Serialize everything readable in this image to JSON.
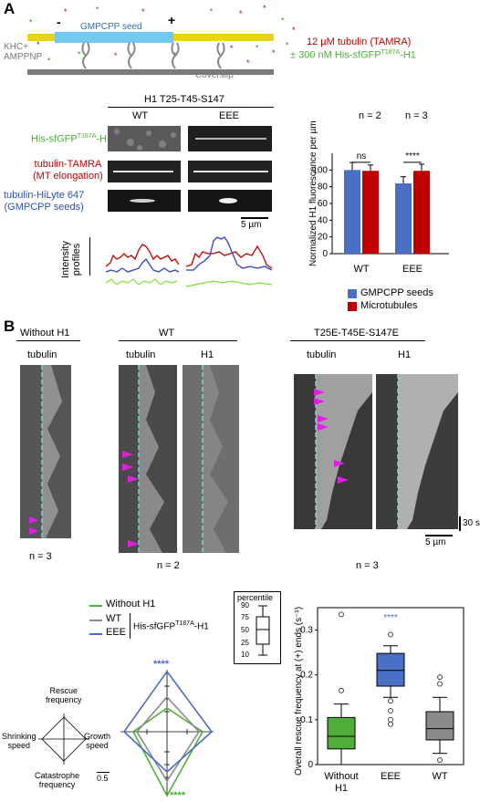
{
  "panelA": {
    "label": "A",
    "schematic": {
      "seed_label": "GMPCPP seed",
      "minus": "-",
      "plus": "+",
      "khc_label": [
        "KHC+",
        "AMPPNP"
      ],
      "coverslip_label": "Coverslip",
      "tubulin_text": "12 µM tubulin (TAMRA)",
      "h1_text_pre": "± 300 nM His-sfGFP",
      "h1_text_sup": "T187A",
      "h1_text_post": "-H1"
    },
    "micrographs": {
      "construct_title": "H1 T25-T45-S147",
      "col_wt": "WT",
      "col_eee": "EEE",
      "row1_pre": "His-sfGFP",
      "row1_sup": "T187A",
      "row1_post": "-H1",
      "row2_line1": "tubulin-TAMRA",
      "row2_line2": "(MT elongation)",
      "row3_line1": "tubulin-HiLyte 647",
      "row3_line2": "(GMPCPP seeds)",
      "scale_bar": "5 µm",
      "profiles_label": [
        "Intensity",
        "profiles"
      ]
    },
    "bar_chart_labels": {
      "n_wt": "n = 2",
      "n_eee": "n = 3",
      "sig_wt": "ns",
      "sig_eee": "****",
      "legend_seeds": "GMPCPP seeds",
      "legend_mt": "Microtubules"
    }
  },
  "panelB": {
    "label": "B",
    "groups": {
      "without_h1": "Without H1",
      "wt": "WT",
      "eee": "T25E-T45E-S147E"
    },
    "col_tubulin": "tubulin",
    "col_h1": "H1",
    "n_without": "n = 3",
    "n_wt": "n = 2",
    "n_eee": "n = 3",
    "time_scale": "30 s",
    "space_scale": "5 µm",
    "radar": {
      "legend_without": "Without H1",
      "legend_wt": "WT",
      "legend_eee": "EEE",
      "legend_construct_pre": "His-sfGFP",
      "legend_construct_sup": "T187A",
      "legend_construct_post": "-H1",
      "axis_rescue": [
        "Rescue",
        "frequency"
      ],
      "axis_shrinking": [
        "Shrinking",
        "speed"
      ],
      "axis_growth": [
        "Growth",
        "speed"
      ],
      "axis_catastrophe": [
        "Catastrophe",
        "frequency"
      ],
      "scale": "0.5",
      "sig_top": "****",
      "sig_bottom": "****"
    },
    "percentile_key": {
      "title": "percentile",
      "values": [
        "90",
        "75",
        "50",
        "25",
        "10"
      ]
    }
  },
  "colors": {
    "seed_blue": "#4a6fc4",
    "mt_red": "#c00000",
    "green": "#4fae3a",
    "gray": "#8a8a8a",
    "magenta": "#e020e0",
    "cyan": "#7fd3d6"
  },
  "chart_data": [
    {
      "type": "bar",
      "title": "",
      "ylabel": "Normalized H1 fluorescence per µm",
      "categories": [
        "WT",
        "EEE"
      ],
      "ylim": [
        0,
        120
      ],
      "yticks": [
        0,
        20,
        40,
        60,
        80,
        100
      ],
      "series": [
        {
          "name": "GMPCPP seeds",
          "values": [
            100,
            84
          ],
          "errors": [
            9,
            8
          ]
        },
        {
          "name": "Microtubules",
          "values": [
            99,
            99
          ],
          "errors": [
            7,
            8
          ]
        }
      ]
    },
    {
      "type": "box",
      "ylabel": "Overall rescue frequency at (+) ends (s⁻¹)",
      "categories": [
        "Without H1",
        "EEE",
        "WT"
      ],
      "ylim": [
        0,
        0.35
      ],
      "yticks": [
        0,
        0.1,
        0.2,
        0.3
      ],
      "boxes": [
        {
          "q1": 0.035,
          "median": 0.063,
          "q3": 0.105,
          "whisker_low": 0.0,
          "whisker_high": 0.135,
          "outliers": [
            0.335,
            0.165
          ]
        },
        {
          "q1": 0.175,
          "median": 0.21,
          "q3": 0.248,
          "whisker_low": 0.15,
          "whisker_high": 0.265,
          "outliers": [
            0.29,
            0.142,
            0.12,
            0.1,
            0.09
          ]
        },
        {
          "q1": 0.055,
          "median": 0.08,
          "q3": 0.118,
          "whisker_low": 0.025,
          "whisker_high": 0.15,
          "outliers": [
            0.195,
            0.18,
            0.01
          ]
        }
      ],
      "significance": {
        "EEE": "****"
      }
    }
  ]
}
